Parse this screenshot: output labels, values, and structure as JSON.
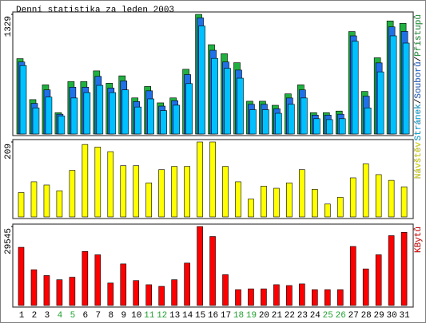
{
  "chart_data": [
    {
      "type": "bar",
      "title": "Denní statistika za leden 2003",
      "legend_separator": "/",
      "ylim": [
        0,
        1329
      ],
      "yticks": [
        1329
      ],
      "series": [
        {
          "name": "Přístupů",
          "color": "#20b040",
          "values": [
            837,
            382,
            546,
            237,
            583,
            583,
            701,
            564,
            646,
            401,
            528,
            346,
            401,
            719,
            1329,
            992,
            892,
            792,
            364,
            364,
            319,
            446,
            546,
            237,
            237,
            255,
            1138,
            473,
            847,
            1256,
            1229
          ]
        },
        {
          "name": "Souborů",
          "color": "#2070e8",
          "values": [
            800,
            340,
            490,
            220,
            520,
            520,
            640,
            510,
            590,
            360,
            480,
            310,
            370,
            660,
            1290,
            930,
            800,
            710,
            330,
            330,
            280,
            400,
            490,
            210,
            210,
            220,
            1090,
            420,
            790,
            1190,
            1140
          ]
        },
        {
          "name": "Stránek",
          "color": "#00c0ff",
          "values": [
            760,
            290,
            410,
            200,
            400,
            460,
            540,
            460,
            490,
            300,
            390,
            260,
            320,
            560,
            1200,
            840,
            730,
            620,
            270,
            270,
            230,
            330,
            400,
            170,
            160,
            170,
            1030,
            290,
            690,
            1090,
            1010
          ]
        }
      ]
    },
    {
      "type": "bar",
      "ylim": [
        0,
        209
      ],
      "yticks": [
        209
      ],
      "series": [
        {
          "name": "Návštěv",
          "color": "#ffff00",
          "values": [
            68,
            98,
            89,
            73,
            130,
            202,
            195,
            182,
            143,
            143,
            95,
            132,
            141,
            141,
            209,
            209,
            141,
            98,
            50,
            86,
            80,
            95,
            132,
            77,
            36,
            55,
            109,
            148,
            118,
            102,
            84
          ]
        }
      ]
    },
    {
      "type": "bar",
      "ylim": [
        0,
        29545
      ],
      "yticks": [
        29545
      ],
      "categories": [
        "1",
        "2",
        "3",
        "4",
        "5",
        "6",
        "7",
        "8",
        "9",
        "10",
        "11",
        "12",
        "13",
        "14",
        "15",
        "16",
        "17",
        "18",
        "19",
        "20",
        "21",
        "22",
        "23",
        "24",
        "25",
        "26",
        "27",
        "28",
        "29",
        "30",
        "31"
      ],
      "category_colors": [
        "#000",
        "#000",
        "#000",
        "#20a030",
        "#20a030",
        "#000",
        "#000",
        "#000",
        "#000",
        "#000",
        "#20a030",
        "#20a030",
        "#000",
        "#000",
        "#000",
        "#000",
        "#000",
        "#20a030",
        "#20a030",
        "#000",
        "#000",
        "#000",
        "#000",
        "#000",
        "#20a030",
        "#20a030",
        "#000",
        "#000",
        "#000",
        "#000",
        "#000"
      ],
      "series": [
        {
          "name": "KBytů",
          "color": "#ff0000",
          "values": [
            21770,
            13370,
            11200,
            9640,
            10580,
            20210,
            18960,
            8400,
            15550,
            9330,
            7770,
            7150,
            9640,
            15860,
            29545,
            25810,
            11510,
            5910,
            6220,
            6220,
            7780,
            7460,
            8080,
            5910,
            5910,
            5910,
            22080,
            13680,
            18970,
            26120,
            27370
          ]
        }
      ]
    }
  ]
}
